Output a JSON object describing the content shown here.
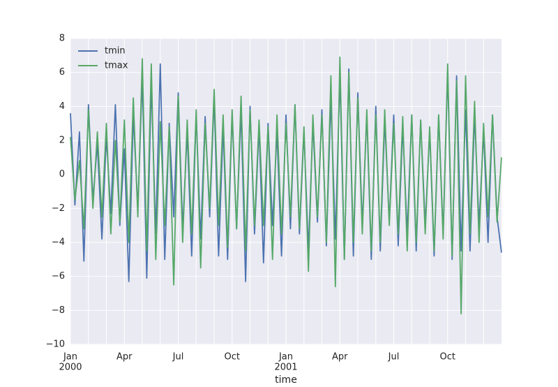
{
  "chart_data": {
    "type": "line",
    "xlabel": "time",
    "x": [
      0,
      0.25,
      0.5,
      0.75,
      1,
      1.25,
      1.5,
      1.75,
      2,
      2.25,
      2.5,
      2.75,
      3,
      3.25,
      3.5,
      3.75,
      4,
      4.25,
      4.5,
      4.75,
      5,
      5.25,
      5.5,
      5.75,
      6,
      6.25,
      6.5,
      6.75,
      7,
      7.25,
      7.5,
      7.75,
      8,
      8.25,
      8.5,
      8.75,
      9,
      9.25,
      9.5,
      9.75,
      10,
      10.25,
      10.5,
      10.75,
      11,
      11.25,
      11.5,
      11.75,
      12,
      12.25,
      12.5,
      12.75,
      13,
      13.25,
      13.5,
      13.75,
      14,
      14.25,
      14.5,
      14.75,
      15,
      15.25,
      15.5,
      15.75,
      16,
      16.25,
      16.5,
      16.75,
      17,
      17.25,
      17.5,
      17.75,
      18,
      18.25,
      18.5,
      18.75,
      19,
      19.25,
      19.5,
      19.75,
      20,
      20.25,
      20.5,
      20.75,
      21,
      21.25,
      21.5,
      21.75,
      22,
      22.25,
      22.5,
      22.75,
      23,
      23.25,
      23.5,
      23.75,
      24
    ],
    "series": [
      {
        "name": "tmin",
        "color": "#4c72b0",
        "values": [
          3.6,
          -1.8,
          2.5,
          -5.1,
          4.1,
          -1.5,
          1.8,
          -3.8,
          2.2,
          -2.3,
          4.1,
          -3.0,
          1.5,
          -6.3,
          3.5,
          -2.0,
          5.7,
          -6.1,
          5.4,
          -3.5,
          6.5,
          -5.0,
          3.0,
          -2.5,
          4.8,
          -3.2,
          2.5,
          -4.8,
          3.5,
          -3.8,
          3.4,
          -2.5,
          4.5,
          -4.8,
          2.8,
          -5.0,
          3.5,
          -3.2,
          3.8,
          -6.3,
          4.0,
          -3.5,
          2.8,
          -5.2,
          3.0,
          -3.0,
          2.5,
          -4.8,
          3.5,
          -3.2,
          4.1,
          -3.5,
          2.5,
          -4.5,
          3.0,
          -2.8,
          3.8,
          -4.2,
          4.5,
          -3.8,
          5.8,
          -5.0,
          6.2,
          -4.8,
          4.8,
          -3.0,
          3.5,
          -5.0,
          4.0,
          -4.5,
          3.2,
          -2.8,
          3.5,
          -4.2,
          2.8,
          -3.5,
          3.5,
          -4.5,
          3.2,
          -3.0,
          2.5,
          -4.8,
          3.5,
          -3.5,
          6.0,
          -5.0,
          5.8,
          -4.5,
          3.8,
          -4.5,
          3.5,
          -3.0,
          2.5,
          -4.0,
          3.5,
          -2.5,
          -4.6
        ]
      },
      {
        "name": "tmax",
        "color": "#55a868",
        "values": [
          2.2,
          -1.5,
          0.8,
          -3.2,
          3.8,
          -2.0,
          2.5,
          -2.5,
          3.0,
          -3.5,
          2.0,
          -2.8,
          3.2,
          -4.0,
          4.5,
          -2.5,
          6.8,
          -4.5,
          6.5,
          -5.0,
          3.1,
          -3.0,
          2.8,
          -6.5,
          4.6,
          -4.0,
          3.2,
          -3.5,
          3.8,
          -5.5,
          3.0,
          -2.0,
          5.0,
          -3.0,
          3.5,
          -4.3,
          3.8,
          -3.2,
          4.6,
          -4.5,
          3.8,
          -3.0,
          3.2,
          -3.0,
          2.8,
          -5.0,
          3.5,
          -3.5,
          3.0,
          -2.5,
          4.1,
          -3.2,
          2.8,
          -5.7,
          3.5,
          -2.5,
          3.5,
          -4.0,
          5.8,
          -6.6,
          6.9,
          -5.0,
          6.0,
          -4.0,
          4.5,
          -3.5,
          3.8,
          -4.5,
          3.5,
          -4.0,
          3.8,
          -3.0,
          3.0,
          -3.5,
          3.4,
          -4.5,
          3.5,
          -4.0,
          3.2,
          -3.5,
          2.8,
          -4.5,
          3.5,
          -3.8,
          6.5,
          -4.8,
          5.5,
          -8.2,
          5.8,
          -3.5,
          4.3,
          -4.0,
          3.0,
          -2.5,
          3.5,
          -2.8,
          1.0
        ]
      }
    ],
    "xlim": [
      0,
      24
    ],
    "xticks": [
      {
        "value": 0,
        "label": "Jan"
      },
      {
        "value": 3,
        "label": "Apr"
      },
      {
        "value": 6,
        "label": "Jul"
      },
      {
        "value": 9,
        "label": "Oct"
      },
      {
        "value": 12,
        "label": "Jan"
      },
      {
        "value": 15,
        "label": "Apr"
      },
      {
        "value": 18,
        "label": "Jul"
      },
      {
        "value": 21,
        "label": "Oct"
      }
    ],
    "xticks_year": [
      {
        "value": 0,
        "label": "2000"
      },
      {
        "value": 12,
        "label": "2001"
      }
    ],
    "xminorticks": [
      1,
      2,
      4,
      5,
      7,
      8,
      10,
      11,
      13,
      14,
      16,
      17,
      19,
      20,
      22,
      23
    ],
    "ylim": [
      -10,
      8
    ],
    "yticks": [
      {
        "value": -10,
        "label": "−10"
      },
      {
        "value": -8,
        "label": "−8"
      },
      {
        "value": -6,
        "label": "−6"
      },
      {
        "value": -4,
        "label": "−4"
      },
      {
        "value": -2,
        "label": "−2"
      },
      0,
      2,
      4,
      6,
      8
    ],
    "grid": true,
    "legend": "upper left"
  }
}
